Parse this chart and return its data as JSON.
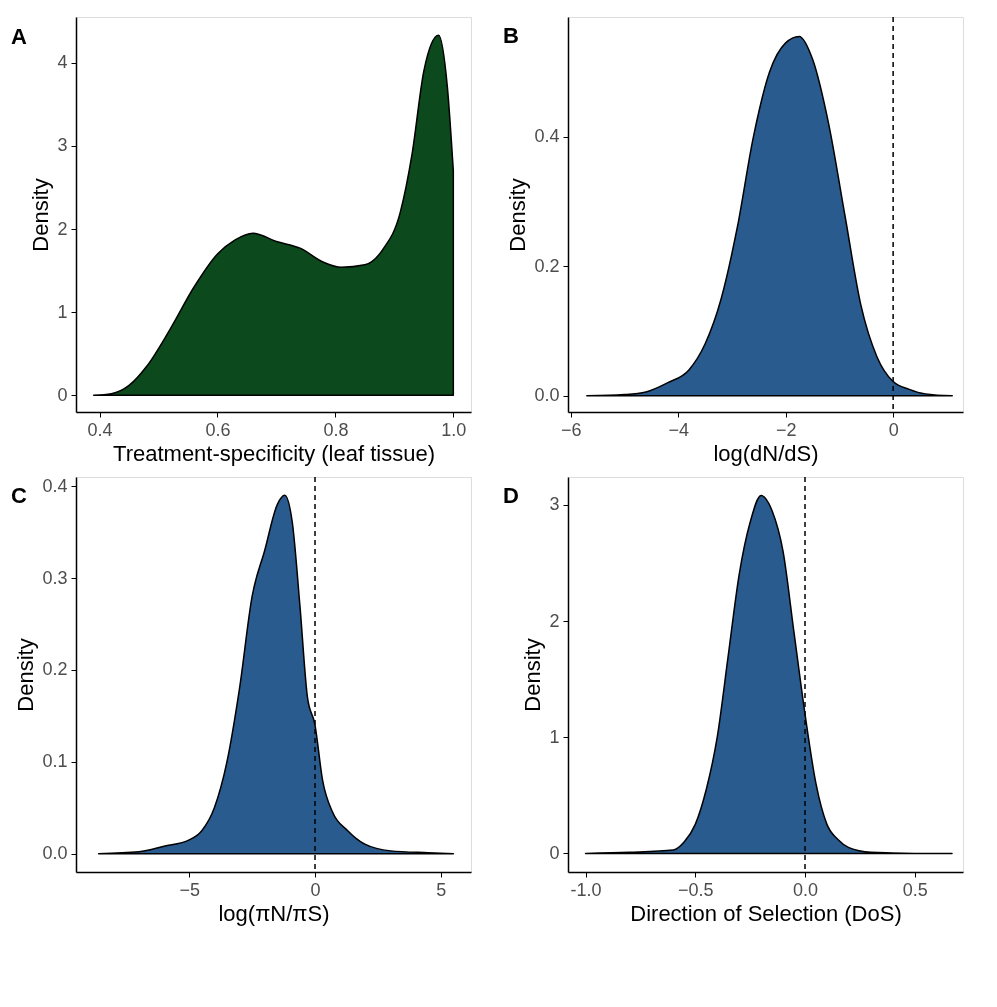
{
  "chart_data": [
    {
      "type": "area",
      "title": "A",
      "xlabel": "Treatment-specificity (leaf tissue)",
      "ylabel": "Density",
      "grid": false,
      "x": [
        0.39,
        0.42,
        0.45,
        0.48,
        0.52,
        0.56,
        0.6,
        0.63,
        0.66,
        0.7,
        0.74,
        0.78,
        0.81,
        0.85,
        0.88,
        0.91,
        0.93,
        0.95,
        0.975,
        0.99,
        1.0
      ],
      "series": [
        {
          "color": "#0c4a1e",
          "values": [
            0,
            0.02,
            0.12,
            0.35,
            0.8,
            1.3,
            1.7,
            1.87,
            1.95,
            1.85,
            1.77,
            1.6,
            1.54,
            1.57,
            1.75,
            2.2,
            2.9,
            3.9,
            4.33,
            3.7,
            2.7
          ]
        }
      ],
      "xlim": [
        0.36,
        1.03
      ],
      "ylim": [
        -0.2,
        4.55
      ],
      "xticks": [
        0.4,
        0.6,
        0.8,
        {
          "value": 1.0,
          "label": "1.0"
        }
      ],
      "yticks": [
        0,
        1,
        2,
        3,
        4
      ]
    },
    {
      "type": "area",
      "title": "B",
      "xlabel": "log(dN/dS)",
      "ylabel": "Density",
      "grid": false,
      "x": [
        -5.7,
        -5,
        -4.6,
        -4.2,
        -3.8,
        -3.5,
        -3.2,
        -2.9,
        -2.6,
        -2.3,
        -2.0,
        -1.75,
        -1.5,
        -1.2,
        -0.9,
        -0.6,
        -0.3,
        0,
        0.3,
        0.6,
        1.1
      ],
      "series": [
        {
          "color": "#2a5b8f",
          "values": [
            0,
            0.002,
            0.006,
            0.02,
            0.04,
            0.08,
            0.15,
            0.26,
            0.4,
            0.5,
            0.545,
            0.555,
            0.52,
            0.42,
            0.28,
            0.14,
            0.06,
            0.022,
            0.01,
            0.003,
            0
          ]
        }
      ],
      "xlim": [
        -6.05,
        1.3
      ],
      "ylim": [
        -0.025,
        0.585
      ],
      "xticks": [
        -6,
        -4,
        -2,
        0
      ],
      "yticks": [
        {
          "value": 0,
          "label": "0.0"
        },
        0.2,
        0.4
      ],
      "ref_lines": [
        {
          "axis": "x",
          "value": 0,
          "line_style": "dashed",
          "color": "#000000"
        }
      ]
    },
    {
      "type": "area",
      "title": "C",
      "xlabel": "log(πN/πS)",
      "ylabel": "Density",
      "grid": false,
      "x": [
        -8.6,
        -7,
        -6,
        -5,
        -4.5,
        -4,
        -3.5,
        -3,
        -2.5,
        -2,
        -1.5,
        -1.2,
        -0.9,
        -0.6,
        -0.3,
        0,
        0.3,
        0.7,
        1.3,
        2,
        3,
        4.5,
        5.5
      ],
      "series": [
        {
          "color": "#2a5b8f",
          "values": [
            0,
            0.002,
            0.008,
            0.015,
            0.025,
            0.05,
            0.1,
            0.18,
            0.28,
            0.33,
            0.38,
            0.39,
            0.36,
            0.27,
            0.17,
            0.14,
            0.08,
            0.045,
            0.025,
            0.01,
            0.003,
            0.001,
            0
          ]
        }
      ],
      "xlim": [
        -9.5,
        6.2
      ],
      "ylim": [
        -0.02,
        0.41
      ],
      "xticks": [
        -5,
        0,
        5
      ],
      "yticks": [
        {
          "value": 0,
          "label": "0.0"
        },
        0.1,
        0.2,
        0.3,
        0.4
      ],
      "ref_lines": [
        {
          "axis": "x",
          "value": 0,
          "line_style": "dashed",
          "color": "#000000"
        }
      ]
    },
    {
      "type": "area",
      "title": "D",
      "xlabel": "Direction of Selection (DoS)",
      "ylabel": "Density",
      "grid": false,
      "x": [
        -1,
        -0.8,
        -0.6,
        -0.55,
        -0.5,
        -0.45,
        -0.4,
        -0.35,
        -0.3,
        -0.25,
        -0.2,
        -0.15,
        -0.1,
        -0.05,
        0,
        0.05,
        0.1,
        0.15,
        0.2,
        0.3,
        0.5,
        0.67
      ],
      "series": [
        {
          "color": "#2a5b8f",
          "values": [
            0,
            0.01,
            0.03,
            0.1,
            0.25,
            0.55,
            1.0,
            1.7,
            2.4,
            2.85,
            3.08,
            2.95,
            2.6,
            1.9,
            1.2,
            0.6,
            0.25,
            0.12,
            0.05,
            0.01,
            0,
            0
          ]
        }
      ],
      "xlim": [
        -1.08,
        0.72
      ],
      "ylim": [
        -0.16,
        3.24
      ],
      "xticks": [
        {
          "value": -1.0,
          "label": "-1.0"
        },
        -0.5,
        {
          "value": 0,
          "label": "0.0"
        },
        0.5
      ],
      "yticks": [
        0,
        1,
        2,
        3
      ],
      "ref_lines": [
        {
          "axis": "x",
          "value": 0,
          "line_style": "dashed",
          "color": "#000000"
        }
      ]
    }
  ]
}
